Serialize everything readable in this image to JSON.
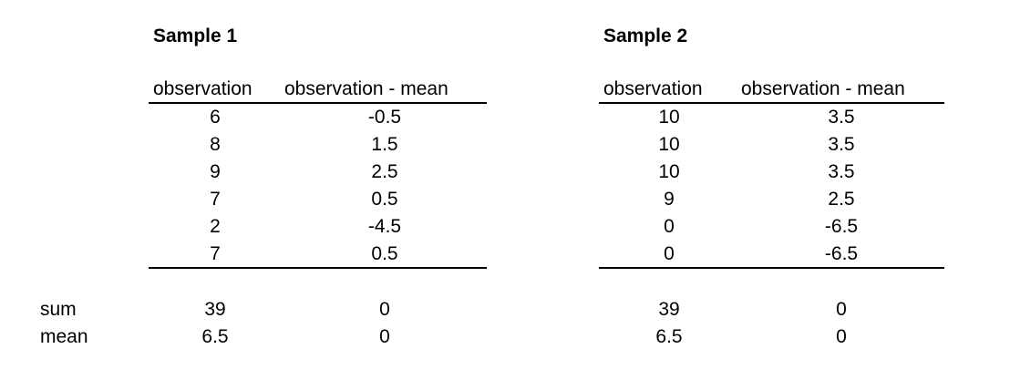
{
  "samples": [
    {
      "title": "Sample 1",
      "headers": [
        "observation",
        "observation - mean"
      ],
      "observations": [
        "6",
        "8",
        "9",
        "7",
        "2",
        "7"
      ],
      "deviations": [
        "-0.5",
        "1.5",
        "2.5",
        "0.5",
        "-4.5",
        "0.5"
      ],
      "sum": [
        "39",
        "0"
      ],
      "mean": [
        "6.5",
        "0"
      ]
    },
    {
      "title": "Sample 2",
      "headers": [
        "observation",
        "observation - mean"
      ],
      "observations": [
        "10",
        "10",
        "10",
        "9",
        "0",
        "0"
      ],
      "deviations": [
        "3.5",
        "3.5",
        "3.5",
        "2.5",
        "-6.5",
        "-6.5"
      ],
      "sum": [
        "39",
        "0"
      ],
      "mean": [
        "6.5",
        "0"
      ]
    }
  ],
  "row_labels": {
    "sum": "sum",
    "mean": "mean"
  }
}
